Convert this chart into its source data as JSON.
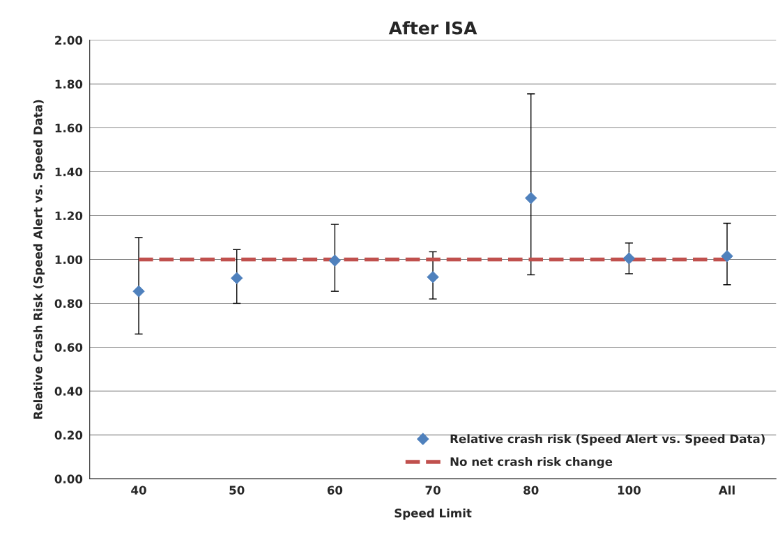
{
  "chart_data": {
    "type": "scatter",
    "title": "After ISA",
    "xlabel": "Speed Limit",
    "ylabel": "Relative Crash Risk (Speed Alert vs. Speed Data)",
    "categories": [
      "40",
      "50",
      "60",
      "70",
      "80",
      "100",
      "All"
    ],
    "series": [
      {
        "name": "Relative crash risk (Speed Alert vs. Speed Data)",
        "color": "#4f81bd",
        "marker": "diamond",
        "values": [
          0.855,
          0.915,
          0.995,
          0.92,
          1.28,
          1.005,
          1.015
        ],
        "errors": [
          [
            0.66,
            1.1
          ],
          [
            0.8,
            1.045
          ],
          [
            0.855,
            1.16
          ],
          [
            0.82,
            1.035
          ],
          [
            0.93,
            1.755
          ],
          [
            0.935,
            1.075
          ],
          [
            0.885,
            1.165
          ]
        ]
      },
      {
        "name": "No net crash risk change",
        "type": "line",
        "color": "#c0504d",
        "line_style": "dashed",
        "marker": "none",
        "values": [
          1,
          1,
          1,
          1,
          1,
          1,
          1
        ]
      }
    ],
    "ylim": [
      0,
      2
    ],
    "yticks": [
      {
        "value": 0,
        "label": "0.00"
      },
      {
        "value": 0.2,
        "label": "0.20"
      },
      {
        "value": 0.4,
        "label": "0.40"
      },
      {
        "value": 0.6,
        "label": "0.60"
      },
      {
        "value": 0.8,
        "label": "0.80"
      },
      {
        "value": 1,
        "label": "1.00"
      },
      {
        "value": 1.2,
        "label": "1.20"
      },
      {
        "value": 1.4,
        "label": "1.40"
      },
      {
        "value": 1.6,
        "label": "1.60"
      },
      {
        "value": 1.8,
        "label": "1.80"
      },
      {
        "value": 2,
        "label": "2.00"
      }
    ],
    "grid": "y",
    "legend": "bottom right"
  }
}
